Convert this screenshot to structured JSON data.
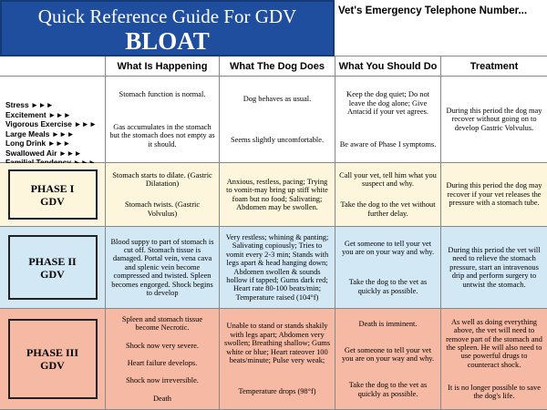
{
  "header": {
    "title": "Quick Reference Guide For GDV",
    "subtitle": "BLOAT",
    "phone": "Vet's Emergency Telephone Number..."
  },
  "table": {
    "columns": [
      "What Is Happening",
      "What The Dog Does",
      "What You Should Do",
      "Treatment"
    ],
    "rows": [
      {
        "label": [
          "Stress ►►►",
          "Excitement ►►►",
          "Vigorous Exercise ►►►",
          "Large Meals ►►►",
          "Long Drink ►►►",
          "Swallowed Air ►►►",
          "Familial Tendency ►►►"
        ],
        "cells": [
          [
            "Stomach function is normal.",
            "Gas accumulates in the stomach but the stomach does not empty as it should."
          ],
          [
            "Dog behaves as usual.",
            "Seems slightly uncomfortable."
          ],
          [
            "Keep the dog quiet; Do not leave the dog alone; Give Antacid if your vet agrees.",
            "Be aware of Phase I symptoms."
          ],
          [
            "During this period the dog may recover without going on to develop Gastric Volvulus."
          ]
        ]
      },
      {
        "label": [
          "PHASE I",
          "GDV"
        ],
        "cells": [
          [
            "Stomach starts to dilate. (Gastric Dilatation)",
            "Stomach twists. (Gastric Volvulus)"
          ],
          [
            "Anxious, restless, pacing; Trying to vomit-may bring up stiff white foam but no food; Salivating; Abdomen may be swollen."
          ],
          [
            "Call your vet, tell him what you suspect and why.",
            "Take the dog to the vet without further delay."
          ],
          [
            "During this period the dog may recover if your vet releases the pressure with a stomach tube."
          ]
        ]
      },
      {
        "label": [
          "PHASE II",
          "GDV"
        ],
        "cells": [
          [
            "Blood suppy to part of stomach is cut off. Stomach tissue is damaged. Portal vein, vena cava and splenic vein become compressed and twisted. Spleen becomes engorged. Shock begins to develop"
          ],
          [
            "Very restless; whining & panting; Salivating copiously; Tries to vomit every 2-3 min; Stands with legs apart & head hanging down; Abdomen swollen & sounds hollow if tapped; Gums dark red; Heart rate 80-100 beats/min; Temperature raised (104°f)"
          ],
          [
            "Get someone to tell your vet you are on your way and why.",
            "Take the dog to the vet as quickly as possible."
          ],
          [
            "During this period the vet will need to relieve the stomach pressure, start an intravenous drip and perform surgery to untwist the stomach."
          ]
        ]
      },
      {
        "label": [
          "PHASE III",
          "GDV"
        ],
        "cells": [
          [
            "Spleen and stomach tissue become Necrotic.",
            "Shock now very severe.",
            "Heart failure develops.",
            "Shock now irreversible.",
            "Death"
          ],
          [
            "Unable to stand or stands shakily with legs apart; Abdomen very swollen; Breathing shallow; Gums white or blue; Heart rateover 100 beats/minute; Pulse very weak;",
            "Temperature drops (98°f)"
          ],
          [
            "Death is imminent.",
            "Get someone to tell your vet you are on your way and why.",
            "Take the dog to the vet as quickly as possible."
          ],
          [
            "As well as doing everything above, the vet will need to remove part of the stomach and the spleen. He will also need to use powerful drugs to counteract shock.",
            "It is no longer possible to save the dog's life."
          ]
        ]
      }
    ]
  }
}
